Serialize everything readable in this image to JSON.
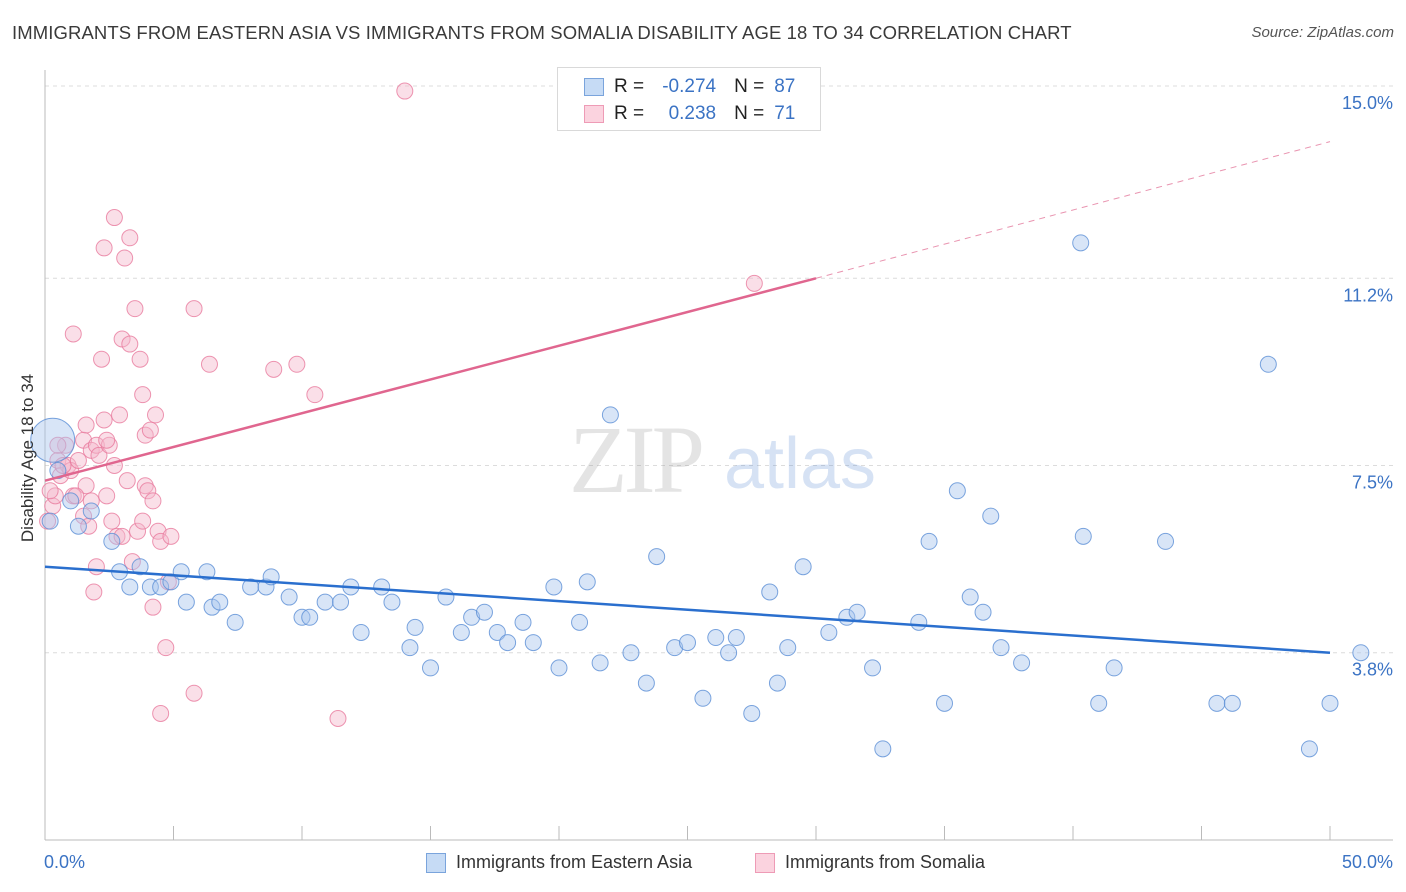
{
  "title": "IMMIGRANTS FROM EASTERN ASIA VS IMMIGRANTS FROM SOMALIA DISABILITY AGE 18 TO 34 CORRELATION CHART",
  "source": "Source: ZipAtlas.com",
  "watermark": {
    "zip": "ZIP",
    "atlas": "atlas"
  },
  "legend": {
    "rows": [
      {
        "r_label": "R =",
        "r_value": "-0.274",
        "n_label": "N =",
        "n_value": "87",
        "color": "#a8c6ee"
      },
      {
        "r_label": "R =",
        "r_value": "0.238",
        "n_label": "N =",
        "n_value": "71",
        "color": "#f5b8cb"
      }
    ]
  },
  "bottom_legend": [
    {
      "label": "Immigrants from Eastern Asia",
      "color": "#a8c6ee"
    },
    {
      "label": "Immigrants from Somalia",
      "color": "#f5b8cb"
    }
  ],
  "chart_data": {
    "type": "scatter",
    "title": "IMMIGRANTS FROM EASTERN ASIA VS IMMIGRANTS FROM SOMALIA DISABILITY AGE 18 TO 34 CORRELATION CHART",
    "xlabel": "",
    "ylabel": "Disability Age 18 to 34",
    "xlim": [
      0,
      50
    ],
    "ylim": [
      0,
      15.5
    ],
    "x_tick_labels": [
      "0.0%",
      "50.0%"
    ],
    "y_ticks": [
      3.8,
      7.5,
      11.2,
      15.0
    ],
    "y_tick_labels": [
      "3.8%",
      "7.5%",
      "11.2%",
      "15.0%"
    ],
    "grid": true,
    "legend_position": "top-center",
    "series": [
      {
        "name": "Immigrants from Eastern Asia",
        "color": "#5b8fd6",
        "fill": "#a8c6ee",
        "points": [
          [
            0.3,
            8.0
          ],
          [
            0.5,
            7.4
          ],
          [
            1.0,
            6.8
          ],
          [
            1.3,
            6.3
          ],
          [
            1.8,
            6.6
          ],
          [
            2.6,
            6.0
          ],
          [
            2.9,
            5.4
          ],
          [
            3.3,
            5.1
          ],
          [
            3.7,
            5.5
          ],
          [
            4.1,
            5.1
          ],
          [
            4.5,
            5.1
          ],
          [
            4.9,
            5.2
          ],
          [
            5.3,
            5.4
          ],
          [
            5.5,
            4.8
          ],
          [
            6.3,
            5.4
          ],
          [
            6.5,
            4.7
          ],
          [
            6.8,
            4.8
          ],
          [
            7.4,
            4.4
          ],
          [
            8.0,
            5.1
          ],
          [
            8.6,
            5.1
          ],
          [
            8.8,
            5.3
          ],
          [
            9.5,
            4.9
          ],
          [
            10.0,
            4.5
          ],
          [
            10.3,
            4.5
          ],
          [
            10.9,
            4.8
          ],
          [
            11.5,
            4.8
          ],
          [
            11.9,
            5.1
          ],
          [
            12.3,
            4.2
          ],
          [
            13.1,
            5.1
          ],
          [
            13.5,
            4.8
          ],
          [
            14.2,
            3.9
          ],
          [
            14.4,
            4.3
          ],
          [
            15.0,
            3.5
          ],
          [
            15.6,
            4.9
          ],
          [
            16.2,
            4.2
          ],
          [
            16.6,
            4.5
          ],
          [
            17.1,
            4.6
          ],
          [
            17.6,
            4.2
          ],
          [
            18.0,
            4.0
          ],
          [
            18.6,
            4.4
          ],
          [
            19.0,
            4.0
          ],
          [
            19.8,
            5.1
          ],
          [
            20.0,
            3.5
          ],
          [
            20.8,
            4.4
          ],
          [
            21.1,
            5.2
          ],
          [
            21.6,
            3.6
          ],
          [
            22.0,
            8.5
          ],
          [
            22.8,
            3.8
          ],
          [
            23.4,
            3.2
          ],
          [
            23.8,
            5.7
          ],
          [
            24.5,
            3.9
          ],
          [
            25.0,
            4.0
          ],
          [
            25.6,
            2.9
          ],
          [
            26.1,
            4.1
          ],
          [
            26.6,
            3.8
          ],
          [
            26.9,
            4.1
          ],
          [
            27.5,
            2.6
          ],
          [
            28.2,
            5.0
          ],
          [
            28.5,
            3.2
          ],
          [
            28.9,
            3.9
          ],
          [
            29.5,
            5.5
          ],
          [
            30.5,
            4.2
          ],
          [
            31.2,
            4.5
          ],
          [
            31.6,
            4.6
          ],
          [
            32.2,
            3.5
          ],
          [
            32.6,
            1.9
          ],
          [
            34.0,
            4.4
          ],
          [
            34.4,
            6.0
          ],
          [
            35.0,
            2.8
          ],
          [
            35.5,
            7.0
          ],
          [
            36.0,
            4.9
          ],
          [
            36.5,
            4.6
          ],
          [
            36.8,
            6.5
          ],
          [
            37.2,
            3.9
          ],
          [
            38.0,
            3.6
          ],
          [
            40.3,
            11.9
          ],
          [
            40.4,
            6.1
          ],
          [
            41.0,
            2.8
          ],
          [
            41.6,
            3.5
          ],
          [
            43.6,
            6.0
          ],
          [
            45.6,
            2.8
          ],
          [
            46.2,
            2.8
          ],
          [
            47.6,
            9.5
          ],
          [
            49.2,
            1.9
          ],
          [
            50.0,
            2.8
          ],
          [
            51.2,
            3.8
          ],
          [
            0.2,
            6.4
          ]
        ]
      },
      {
        "name": "Immigrants from Somalia",
        "color": "#e87a9e",
        "fill": "#f5b8cb",
        "points": [
          [
            0.1,
            6.4
          ],
          [
            0.3,
            6.7
          ],
          [
            0.4,
            6.9
          ],
          [
            0.5,
            7.6
          ],
          [
            0.6,
            7.3
          ],
          [
            0.8,
            7.9
          ],
          [
            0.9,
            7.5
          ],
          [
            1.0,
            7.4
          ],
          [
            1.1,
            6.9
          ],
          [
            1.1,
            10.1
          ],
          [
            1.3,
            7.6
          ],
          [
            1.5,
            6.5
          ],
          [
            1.5,
            8.0
          ],
          [
            1.6,
            7.1
          ],
          [
            1.7,
            6.3
          ],
          [
            1.8,
            7.8
          ],
          [
            1.8,
            6.8
          ],
          [
            1.9,
            5.0
          ],
          [
            2.0,
            5.5
          ],
          [
            2.0,
            7.9
          ],
          [
            2.1,
            7.7
          ],
          [
            2.2,
            9.6
          ],
          [
            2.3,
            8.4
          ],
          [
            2.3,
            11.8
          ],
          [
            2.4,
            6.9
          ],
          [
            2.5,
            7.9
          ],
          [
            2.6,
            6.4
          ],
          [
            2.7,
            7.5
          ],
          [
            2.7,
            12.4
          ],
          [
            2.8,
            6.1
          ],
          [
            2.9,
            8.5
          ],
          [
            3.0,
            10.0
          ],
          [
            3.1,
            11.6
          ],
          [
            3.2,
            7.2
          ],
          [
            3.3,
            9.9
          ],
          [
            3.3,
            12.0
          ],
          [
            3.4,
            5.6
          ],
          [
            3.5,
            10.6
          ],
          [
            3.6,
            6.2
          ],
          [
            3.7,
            9.6
          ],
          [
            3.8,
            6.4
          ],
          [
            3.8,
            8.9
          ],
          [
            3.9,
            8.1
          ],
          [
            3.9,
            7.1
          ],
          [
            4.0,
            7.0
          ],
          [
            4.1,
            8.2
          ],
          [
            4.2,
            6.8
          ],
          [
            4.2,
            4.7
          ],
          [
            4.3,
            8.5
          ],
          [
            4.4,
            6.2
          ],
          [
            4.5,
            2.6
          ],
          [
            4.5,
            6.0
          ],
          [
            4.7,
            3.9
          ],
          [
            4.8,
            5.2
          ],
          [
            4.9,
            6.1
          ],
          [
            5.8,
            10.6
          ],
          [
            5.8,
            3.0
          ],
          [
            6.4,
            9.5
          ],
          [
            8.9,
            9.4
          ],
          [
            9.8,
            9.5
          ],
          [
            10.5,
            8.9
          ],
          [
            11.4,
            2.5
          ],
          [
            14.0,
            14.9
          ],
          [
            27.6,
            11.1
          ],
          [
            0.2,
            7.0
          ],
          [
            0.7,
            7.5
          ],
          [
            1.2,
            6.9
          ],
          [
            2.4,
            8.0
          ],
          [
            3.0,
            6.1
          ],
          [
            0.5,
            7.9
          ],
          [
            1.6,
            8.3
          ]
        ]
      }
    ],
    "trend_lines": [
      {
        "series": "Immigrants from Eastern Asia",
        "x": [
          0,
          50
        ],
        "y": [
          5.5,
          3.8
        ],
        "style": "solid"
      },
      {
        "series": "Immigrants from Somalia",
        "x": [
          0,
          30
        ],
        "y": [
          7.2,
          11.2
        ],
        "style": "solid"
      },
      {
        "series": "Immigrants from Somalia",
        "x": [
          30,
          50
        ],
        "y": [
          11.2,
          13.9
        ],
        "style": "dashed"
      }
    ]
  }
}
